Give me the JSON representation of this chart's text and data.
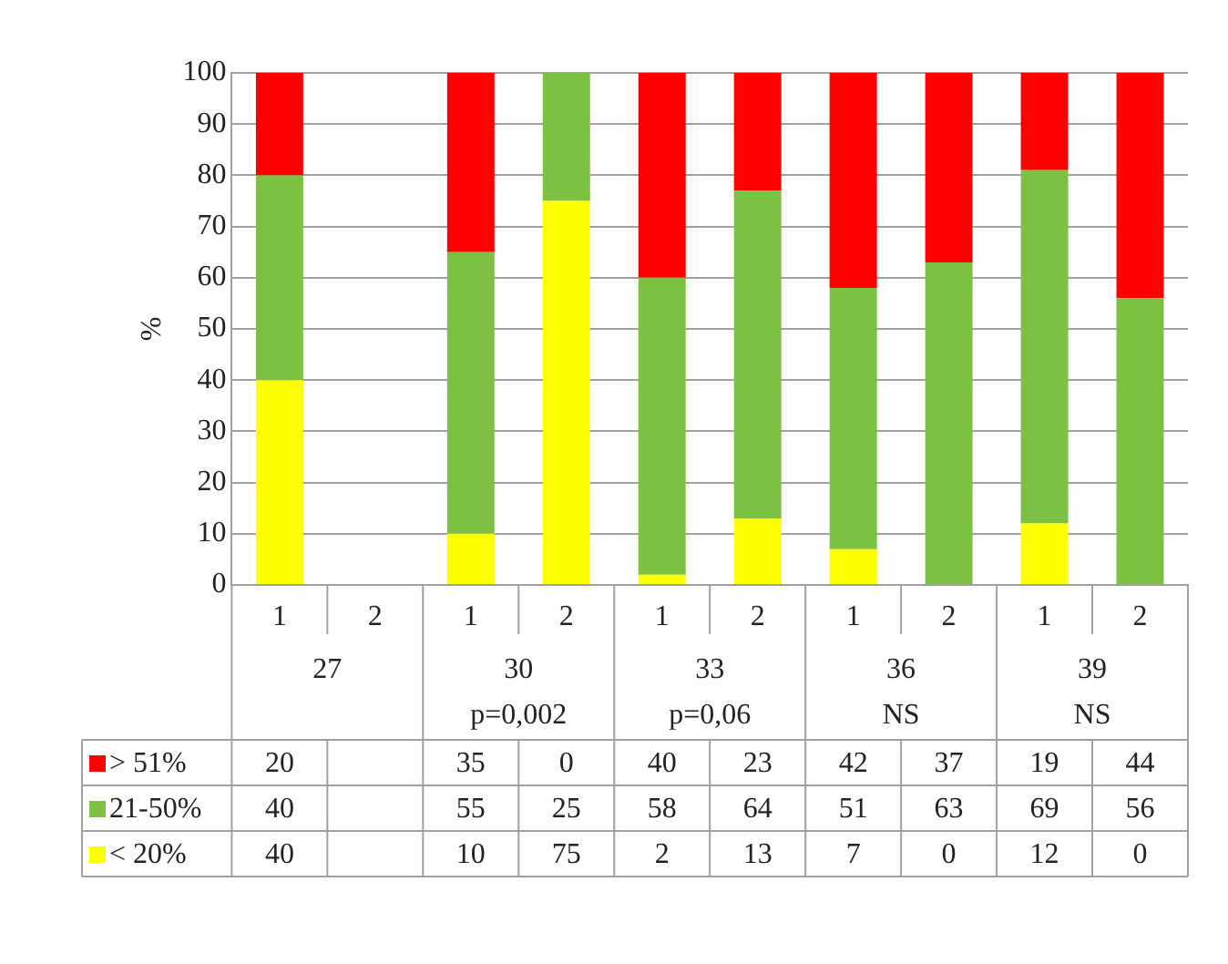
{
  "chart_data": {
    "type": "bar",
    "stacked": true,
    "ylabel": "%",
    "ylim": [
      0,
      100
    ],
    "yticks": [
      0,
      10,
      20,
      30,
      40,
      50,
      60,
      70,
      80,
      90,
      100
    ],
    "grid": "y",
    "legend": "bottom",
    "data_labels": true,
    "categories": [
      "1",
      "2",
      "1",
      "2",
      "1",
      "2",
      "1",
      "2",
      "1",
      "2"
    ],
    "annotations": [
      "27",
      "30\np=0,002",
      "33\np=0,06",
      "36\nNS",
      "39\nNS"
    ],
    "series": [
      {
        "name": "< 20%",
        "color": "#ffff00",
        "values": [
          40,
          null,
          10,
          75,
          2,
          13,
          7,
          0,
          12,
          0
        ]
      },
      {
        "name": "21-50%",
        "color": "#7cc142",
        "values": [
          40,
          null,
          55,
          25,
          58,
          64,
          51,
          63,
          69,
          56
        ]
      },
      {
        "name": "> 51%",
        "color": "#ff0000",
        "values": [
          20,
          null,
          35,
          0,
          40,
          23,
          42,
          37,
          19,
          44
        ]
      }
    ]
  }
}
